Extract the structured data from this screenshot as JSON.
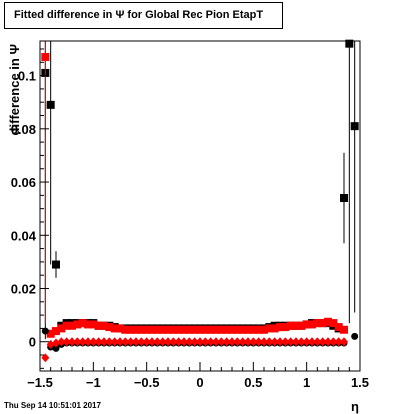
{
  "title": "Fitted difference in  Ψ  for Global Rec Pion EtapT",
  "footer_timestamp": "Thu Sep 14 10:51:01 2017",
  "chart_data": {
    "type": "scatter",
    "xlabel": "η",
    "ylabel": "difference in  Ψ",
    "xlim": [
      -1.5,
      1.5
    ],
    "ylim": [
      -0.011,
      0.113
    ],
    "xticks": [
      "−1.5",
      "−1",
      "−0.5",
      "0",
      "0.5",
      "1",
      "1.5"
    ],
    "yticks": [
      "0",
      "0.02",
      "0.04",
      "0.06",
      "0.08",
      "0.1"
    ],
    "colors": {
      "black": "#000000",
      "red": "#ff0000"
    },
    "series": [
      {
        "marker": "square",
        "color": "black",
        "points": [
          {
            "x": -1.45,
            "y": 0.101,
            "err": 0.1
          },
          {
            "x": -1.4,
            "y": 0.089,
            "err": 0.06
          },
          {
            "x": -1.35,
            "y": 0.029,
            "err": 0.005
          },
          {
            "x": -1.3,
            "y": 0.006
          },
          {
            "x": -1.25,
            "y": 0.007
          },
          {
            "x": -1.2,
            "y": 0.007
          },
          {
            "x": -1.15,
            "y": 0.007
          },
          {
            "x": -1.1,
            "y": 0.007
          },
          {
            "x": -1.05,
            "y": 0.007
          },
          {
            "x": -1.0,
            "y": 0.007
          },
          {
            "x": -0.95,
            "y": 0.006
          },
          {
            "x": -0.9,
            "y": 0.006
          },
          {
            "x": -0.85,
            "y": 0.006
          },
          {
            "x": -0.8,
            "y": 0.0055
          },
          {
            "x": -0.75,
            "y": 0.005
          },
          {
            "x": -0.7,
            "y": 0.005
          },
          {
            "x": -0.65,
            "y": 0.005
          },
          {
            "x": -0.6,
            "y": 0.005
          },
          {
            "x": -0.55,
            "y": 0.005
          },
          {
            "x": -0.5,
            "y": 0.005
          },
          {
            "x": -0.45,
            "y": 0.005
          },
          {
            "x": -0.4,
            "y": 0.005
          },
          {
            "x": -0.35,
            "y": 0.005
          },
          {
            "x": -0.3,
            "y": 0.005
          },
          {
            "x": -0.25,
            "y": 0.005
          },
          {
            "x": -0.2,
            "y": 0.005
          },
          {
            "x": -0.15,
            "y": 0.005
          },
          {
            "x": -0.1,
            "y": 0.005
          },
          {
            "x": -0.05,
            "y": 0.005
          },
          {
            "x": 0.0,
            "y": 0.005
          },
          {
            "x": 0.05,
            "y": 0.005
          },
          {
            "x": 0.1,
            "y": 0.005
          },
          {
            "x": 0.15,
            "y": 0.005
          },
          {
            "x": 0.2,
            "y": 0.005
          },
          {
            "x": 0.25,
            "y": 0.005
          },
          {
            "x": 0.3,
            "y": 0.005
          },
          {
            "x": 0.35,
            "y": 0.005
          },
          {
            "x": 0.4,
            "y": 0.005
          },
          {
            "x": 0.45,
            "y": 0.005
          },
          {
            "x": 0.5,
            "y": 0.005
          },
          {
            "x": 0.55,
            "y": 0.005
          },
          {
            "x": 0.6,
            "y": 0.005
          },
          {
            "x": 0.65,
            "y": 0.0055
          },
          {
            "x": 0.7,
            "y": 0.006
          },
          {
            "x": 0.75,
            "y": 0.006
          },
          {
            "x": 0.8,
            "y": 0.006
          },
          {
            "x": 0.85,
            "y": 0.006
          },
          {
            "x": 0.9,
            "y": 0.006
          },
          {
            "x": 0.95,
            "y": 0.006
          },
          {
            "x": 1.0,
            "y": 0.0065
          },
          {
            "x": 1.05,
            "y": 0.007
          },
          {
            "x": 1.1,
            "y": 0.007
          },
          {
            "x": 1.15,
            "y": 0.007
          },
          {
            "x": 1.2,
            "y": 0.007
          },
          {
            "x": 1.25,
            "y": 0.006
          },
          {
            "x": 1.3,
            "y": 0.005
          },
          {
            "x": 1.35,
            "y": 0.054,
            "err": 0.017
          },
          {
            "x": 1.4,
            "y": 0.112,
            "err": 0.105
          },
          {
            "x": 1.45,
            "y": 0.081,
            "err": 0.07
          }
        ]
      },
      {
        "marker": "square",
        "color": "red",
        "points": [
          {
            "x": -1.45,
            "y": 0.107,
            "err": 0.1
          },
          {
            "x": -1.4,
            "y": 0.003
          },
          {
            "x": -1.35,
            "y": 0.004
          },
          {
            "x": -1.3,
            "y": 0.005
          },
          {
            "x": -1.25,
            "y": 0.006
          },
          {
            "x": -1.2,
            "y": 0.006
          },
          {
            "x": -1.15,
            "y": 0.0065
          },
          {
            "x": -1.1,
            "y": 0.007
          },
          {
            "x": -1.05,
            "y": 0.0065
          },
          {
            "x": -1.0,
            "y": 0.0065
          },
          {
            "x": -0.95,
            "y": 0.006
          },
          {
            "x": -0.9,
            "y": 0.006
          },
          {
            "x": -0.85,
            "y": 0.0055
          },
          {
            "x": -0.8,
            "y": 0.005
          },
          {
            "x": -0.75,
            "y": 0.005
          },
          {
            "x": -0.7,
            "y": 0.0045
          },
          {
            "x": -0.65,
            "y": 0.0045
          },
          {
            "x": -0.6,
            "y": 0.0045
          },
          {
            "x": -0.55,
            "y": 0.0045
          },
          {
            "x": -0.5,
            "y": 0.0045
          },
          {
            "x": -0.45,
            "y": 0.0045
          },
          {
            "x": -0.4,
            "y": 0.0045
          },
          {
            "x": -0.35,
            "y": 0.0045
          },
          {
            "x": -0.3,
            "y": 0.0045
          },
          {
            "x": -0.25,
            "y": 0.0045
          },
          {
            "x": -0.2,
            "y": 0.0045
          },
          {
            "x": -0.15,
            "y": 0.0045
          },
          {
            "x": -0.1,
            "y": 0.0045
          },
          {
            "x": -0.05,
            "y": 0.0045
          },
          {
            "x": 0.0,
            "y": 0.0045
          },
          {
            "x": 0.05,
            "y": 0.0045
          },
          {
            "x": 0.1,
            "y": 0.0045
          },
          {
            "x": 0.15,
            "y": 0.0045
          },
          {
            "x": 0.2,
            "y": 0.0045
          },
          {
            "x": 0.25,
            "y": 0.0045
          },
          {
            "x": 0.3,
            "y": 0.0045
          },
          {
            "x": 0.35,
            "y": 0.0045
          },
          {
            "x": 0.4,
            "y": 0.0045
          },
          {
            "x": 0.45,
            "y": 0.0045
          },
          {
            "x": 0.5,
            "y": 0.0045
          },
          {
            "x": 0.55,
            "y": 0.0045
          },
          {
            "x": 0.6,
            "y": 0.0045
          },
          {
            "x": 0.65,
            "y": 0.005
          },
          {
            "x": 0.7,
            "y": 0.005
          },
          {
            "x": 0.75,
            "y": 0.0055
          },
          {
            "x": 0.8,
            "y": 0.0055
          },
          {
            "x": 0.85,
            "y": 0.006
          },
          {
            "x": 0.9,
            "y": 0.006
          },
          {
            "x": 0.95,
            "y": 0.006
          },
          {
            "x": 1.0,
            "y": 0.0065
          },
          {
            "x": 1.05,
            "y": 0.0065
          },
          {
            "x": 1.1,
            "y": 0.007
          },
          {
            "x": 1.15,
            "y": 0.007
          },
          {
            "x": 1.2,
            "y": 0.0075
          },
          {
            "x": 1.25,
            "y": 0.007
          },
          {
            "x": 1.3,
            "y": 0.0055
          },
          {
            "x": 1.35,
            "y": 0.0045
          }
        ]
      },
      {
        "marker": "circle",
        "color": "black",
        "points": [
          {
            "x": -1.45,
            "y": 0.004
          },
          {
            "x": -1.4,
            "y": -0.002
          },
          {
            "x": -1.35,
            "y": -0.0025
          },
          {
            "x": -1.3,
            "y": -0.001
          },
          {
            "x": -1.25,
            "y": -0.0005
          },
          {
            "x": -1.2,
            "y": -0.0005
          },
          {
            "x": -1.15,
            "y": -0.0005
          },
          {
            "x": -1.1,
            "y": -0.0005
          },
          {
            "x": -1.05,
            "y": -0.0005
          },
          {
            "x": -1.0,
            "y": -0.0005
          },
          {
            "x": -0.95,
            "y": -0.0005
          },
          {
            "x": -0.9,
            "y": -0.0005
          },
          {
            "x": -0.85,
            "y": -0.0005
          },
          {
            "x": -0.8,
            "y": -0.0005
          },
          {
            "x": -0.75,
            "y": -0.0005
          },
          {
            "x": -0.7,
            "y": -0.0005
          },
          {
            "x": -0.65,
            "y": -0.0005
          },
          {
            "x": -0.6,
            "y": -0.0005
          },
          {
            "x": -0.55,
            "y": -0.0005
          },
          {
            "x": -0.5,
            "y": -0.0005
          },
          {
            "x": -0.45,
            "y": -0.0005
          },
          {
            "x": -0.4,
            "y": -0.0005
          },
          {
            "x": -0.35,
            "y": -0.0005
          },
          {
            "x": -0.3,
            "y": -0.0005
          },
          {
            "x": -0.25,
            "y": -0.0005
          },
          {
            "x": -0.2,
            "y": -0.0005
          },
          {
            "x": -0.15,
            "y": -0.0005
          },
          {
            "x": -0.1,
            "y": -0.0005
          },
          {
            "x": -0.05,
            "y": -0.0005
          },
          {
            "x": 0.0,
            "y": -0.0005
          },
          {
            "x": 0.05,
            "y": -0.0005
          },
          {
            "x": 0.1,
            "y": -0.0005
          },
          {
            "x": 0.15,
            "y": -0.0005
          },
          {
            "x": 0.2,
            "y": -0.0005
          },
          {
            "x": 0.25,
            "y": -0.0005
          },
          {
            "x": 0.3,
            "y": -0.0005
          },
          {
            "x": 0.35,
            "y": -0.0005
          },
          {
            "x": 0.4,
            "y": -0.0005
          },
          {
            "x": 0.45,
            "y": -0.0005
          },
          {
            "x": 0.5,
            "y": -0.0005
          },
          {
            "x": 0.55,
            "y": -0.0005
          },
          {
            "x": 0.6,
            "y": -0.0005
          },
          {
            "x": 0.65,
            "y": -0.0005
          },
          {
            "x": 0.7,
            "y": -0.0005
          },
          {
            "x": 0.75,
            "y": -0.0005
          },
          {
            "x": 0.8,
            "y": -0.0005
          },
          {
            "x": 0.85,
            "y": -0.0005
          },
          {
            "x": 0.9,
            "y": -0.0005
          },
          {
            "x": 0.95,
            "y": -0.0005
          },
          {
            "x": 1.0,
            "y": -0.0005
          },
          {
            "x": 1.05,
            "y": -0.0005
          },
          {
            "x": 1.1,
            "y": -0.0005
          },
          {
            "x": 1.15,
            "y": -0.0005
          },
          {
            "x": 1.2,
            "y": -0.0005
          },
          {
            "x": 1.25,
            "y": -0.0005
          },
          {
            "x": 1.3,
            "y": -0.0005
          },
          {
            "x": 1.35,
            "y": -0.0005
          },
          {
            "x": 1.45,
            "y": 0.002
          }
        ]
      },
      {
        "marker": "diamond",
        "color": "red",
        "points": [
          {
            "x": -1.45,
            "y": -0.006
          },
          {
            "x": -1.4,
            "y": -0.001
          },
          {
            "x": -1.35,
            "y": -0.0005
          },
          {
            "x": -1.3,
            "y": 0.0
          },
          {
            "x": -1.25,
            "y": 0.0
          },
          {
            "x": -1.2,
            "y": 0.0
          },
          {
            "x": -1.15,
            "y": 0.0
          },
          {
            "x": -1.1,
            "y": 0.0
          },
          {
            "x": -1.05,
            "y": 0.0
          },
          {
            "x": -1.0,
            "y": 0.0
          },
          {
            "x": -0.95,
            "y": 0.0
          },
          {
            "x": -0.9,
            "y": 0.0
          },
          {
            "x": -0.85,
            "y": 0.0
          },
          {
            "x": -0.8,
            "y": 0.0
          },
          {
            "x": -0.75,
            "y": 0.0
          },
          {
            "x": -0.7,
            "y": 0.0
          },
          {
            "x": -0.65,
            "y": 0.0
          },
          {
            "x": -0.6,
            "y": 0.0
          },
          {
            "x": -0.55,
            "y": 0.0
          },
          {
            "x": -0.5,
            "y": 0.0
          },
          {
            "x": -0.45,
            "y": 0.0
          },
          {
            "x": -0.4,
            "y": 0.0
          },
          {
            "x": -0.35,
            "y": 0.0
          },
          {
            "x": -0.3,
            "y": 0.0
          },
          {
            "x": -0.25,
            "y": 0.0
          },
          {
            "x": -0.2,
            "y": 0.0
          },
          {
            "x": -0.15,
            "y": 0.0
          },
          {
            "x": -0.1,
            "y": 0.0
          },
          {
            "x": -0.05,
            "y": 0.0
          },
          {
            "x": 0.0,
            "y": 0.0
          },
          {
            "x": 0.05,
            "y": 0.0
          },
          {
            "x": 0.1,
            "y": 0.0
          },
          {
            "x": 0.15,
            "y": 0.0
          },
          {
            "x": 0.2,
            "y": 0.0
          },
          {
            "x": 0.25,
            "y": 0.0
          },
          {
            "x": 0.3,
            "y": 0.0
          },
          {
            "x": 0.35,
            "y": 0.0
          },
          {
            "x": 0.4,
            "y": 0.0
          },
          {
            "x": 0.45,
            "y": 0.0
          },
          {
            "x": 0.5,
            "y": 0.0
          },
          {
            "x": 0.55,
            "y": 0.0
          },
          {
            "x": 0.6,
            "y": 0.0
          },
          {
            "x": 0.65,
            "y": 0.0
          },
          {
            "x": 0.7,
            "y": 0.0
          },
          {
            "x": 0.75,
            "y": 0.0
          },
          {
            "x": 0.8,
            "y": 0.0
          },
          {
            "x": 0.85,
            "y": 0.0
          },
          {
            "x": 0.9,
            "y": 0.0
          },
          {
            "x": 0.95,
            "y": 0.0
          },
          {
            "x": 1.0,
            "y": 0.0
          },
          {
            "x": 1.05,
            "y": 0.0
          },
          {
            "x": 1.1,
            "y": 0.0
          },
          {
            "x": 1.15,
            "y": 0.0
          },
          {
            "x": 1.2,
            "y": 0.0
          },
          {
            "x": 1.25,
            "y": 0.0
          },
          {
            "x": 1.3,
            "y": 0.0
          },
          {
            "x": 1.35,
            "y": 0.0
          }
        ]
      }
    ]
  }
}
